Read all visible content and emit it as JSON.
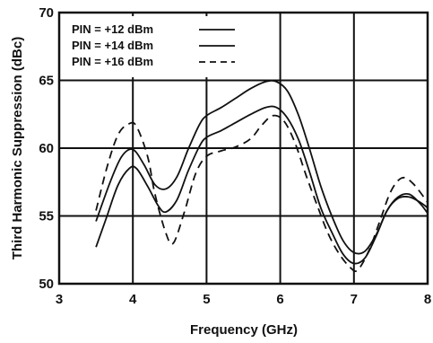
{
  "chart_data": {
    "type": "line",
    "title": "",
    "xlabel": "Frequency (GHz)",
    "ylabel": "Third Harmonic Suppression (dBc)",
    "xlim": [
      3,
      8
    ],
    "ylim": [
      50,
      70
    ],
    "xticks": [
      "3",
      "4",
      "5",
      "6",
      "7",
      "8"
    ],
    "yticks": [
      "50",
      "55",
      "60",
      "65",
      "70"
    ],
    "grid": true,
    "legend_position": "top-left",
    "series": [
      {
        "name": "PIN = +12 dBm",
        "style": "solid",
        "color": "#111111",
        "points": [
          [
            3.5,
            54.6
          ],
          [
            3.7,
            57.6
          ],
          [
            3.85,
            59.4
          ],
          [
            4.0,
            59.9
          ],
          [
            4.15,
            58.8
          ],
          [
            4.3,
            57.3
          ],
          [
            4.45,
            57.0
          ],
          [
            4.6,
            57.9
          ],
          [
            4.75,
            59.9
          ],
          [
            4.9,
            61.7
          ],
          [
            5.0,
            62.4
          ],
          [
            5.2,
            63.0
          ],
          [
            5.4,
            63.7
          ],
          [
            5.6,
            64.4
          ],
          [
            5.8,
            64.9
          ],
          [
            5.95,
            64.9
          ],
          [
            6.1,
            64.2
          ],
          [
            6.25,
            62.4
          ],
          [
            6.4,
            59.9
          ],
          [
            6.55,
            57.2
          ],
          [
            6.7,
            55.0
          ],
          [
            6.85,
            53.2
          ],
          [
            7.0,
            52.3
          ],
          [
            7.15,
            52.4
          ],
          [
            7.3,
            53.6
          ],
          [
            7.45,
            55.4
          ],
          [
            7.6,
            56.4
          ],
          [
            7.75,
            56.6
          ],
          [
            7.9,
            55.9
          ],
          [
            8.0,
            55.2
          ]
        ]
      },
      {
        "name": "PIN = +14 dBm",
        "style": "solid",
        "color": "#111111",
        "points": [
          [
            3.5,
            52.7
          ],
          [
            3.65,
            55.0
          ],
          [
            3.8,
            57.3
          ],
          [
            3.95,
            58.5
          ],
          [
            4.05,
            58.5
          ],
          [
            4.2,
            57.2
          ],
          [
            4.35,
            55.7
          ],
          [
            4.45,
            55.3
          ],
          [
            4.6,
            56.2
          ],
          [
            4.75,
            58.3
          ],
          [
            4.9,
            60.1
          ],
          [
            5.0,
            60.8
          ],
          [
            5.2,
            61.3
          ],
          [
            5.4,
            61.9
          ],
          [
            5.6,
            62.5
          ],
          [
            5.8,
            63.0
          ],
          [
            5.95,
            63.0
          ],
          [
            6.1,
            62.2
          ],
          [
            6.25,
            60.6
          ],
          [
            6.4,
            58.2
          ],
          [
            6.55,
            55.6
          ],
          [
            6.7,
            53.8
          ],
          [
            6.85,
            52.2
          ],
          [
            7.0,
            51.5
          ],
          [
            7.15,
            51.9
          ],
          [
            7.3,
            53.5
          ],
          [
            7.45,
            55.4
          ],
          [
            7.6,
            56.3
          ],
          [
            7.75,
            56.4
          ],
          [
            7.9,
            56.0
          ],
          [
            8.0,
            55.6
          ]
        ]
      },
      {
        "name": "PIN = +16 dBm",
        "style": "dashed",
        "color": "#111111",
        "points": [
          [
            3.5,
            55.4
          ],
          [
            3.65,
            58.6
          ],
          [
            3.8,
            61.0
          ],
          [
            3.95,
            61.8
          ],
          [
            4.05,
            61.6
          ],
          [
            4.2,
            59.4
          ],
          [
            4.3,
            56.6
          ],
          [
            4.45,
            53.7
          ],
          [
            4.55,
            53.0
          ],
          [
            4.7,
            55.3
          ],
          [
            4.85,
            58.1
          ],
          [
            5.0,
            59.4
          ],
          [
            5.2,
            59.8
          ],
          [
            5.4,
            60.1
          ],
          [
            5.6,
            60.7
          ],
          [
            5.75,
            61.7
          ],
          [
            5.9,
            62.4
          ],
          [
            6.05,
            62.0
          ],
          [
            6.2,
            60.4
          ],
          [
            6.35,
            58.0
          ],
          [
            6.5,
            55.8
          ],
          [
            6.65,
            53.7
          ],
          [
            6.8,
            52.2
          ],
          [
            6.95,
            51.2
          ],
          [
            7.05,
            51.0
          ],
          [
            7.2,
            52.4
          ],
          [
            7.35,
            54.6
          ],
          [
            7.5,
            56.8
          ],
          [
            7.65,
            57.8
          ],
          [
            7.8,
            57.4
          ],
          [
            8.0,
            56.0
          ]
        ]
      }
    ]
  }
}
